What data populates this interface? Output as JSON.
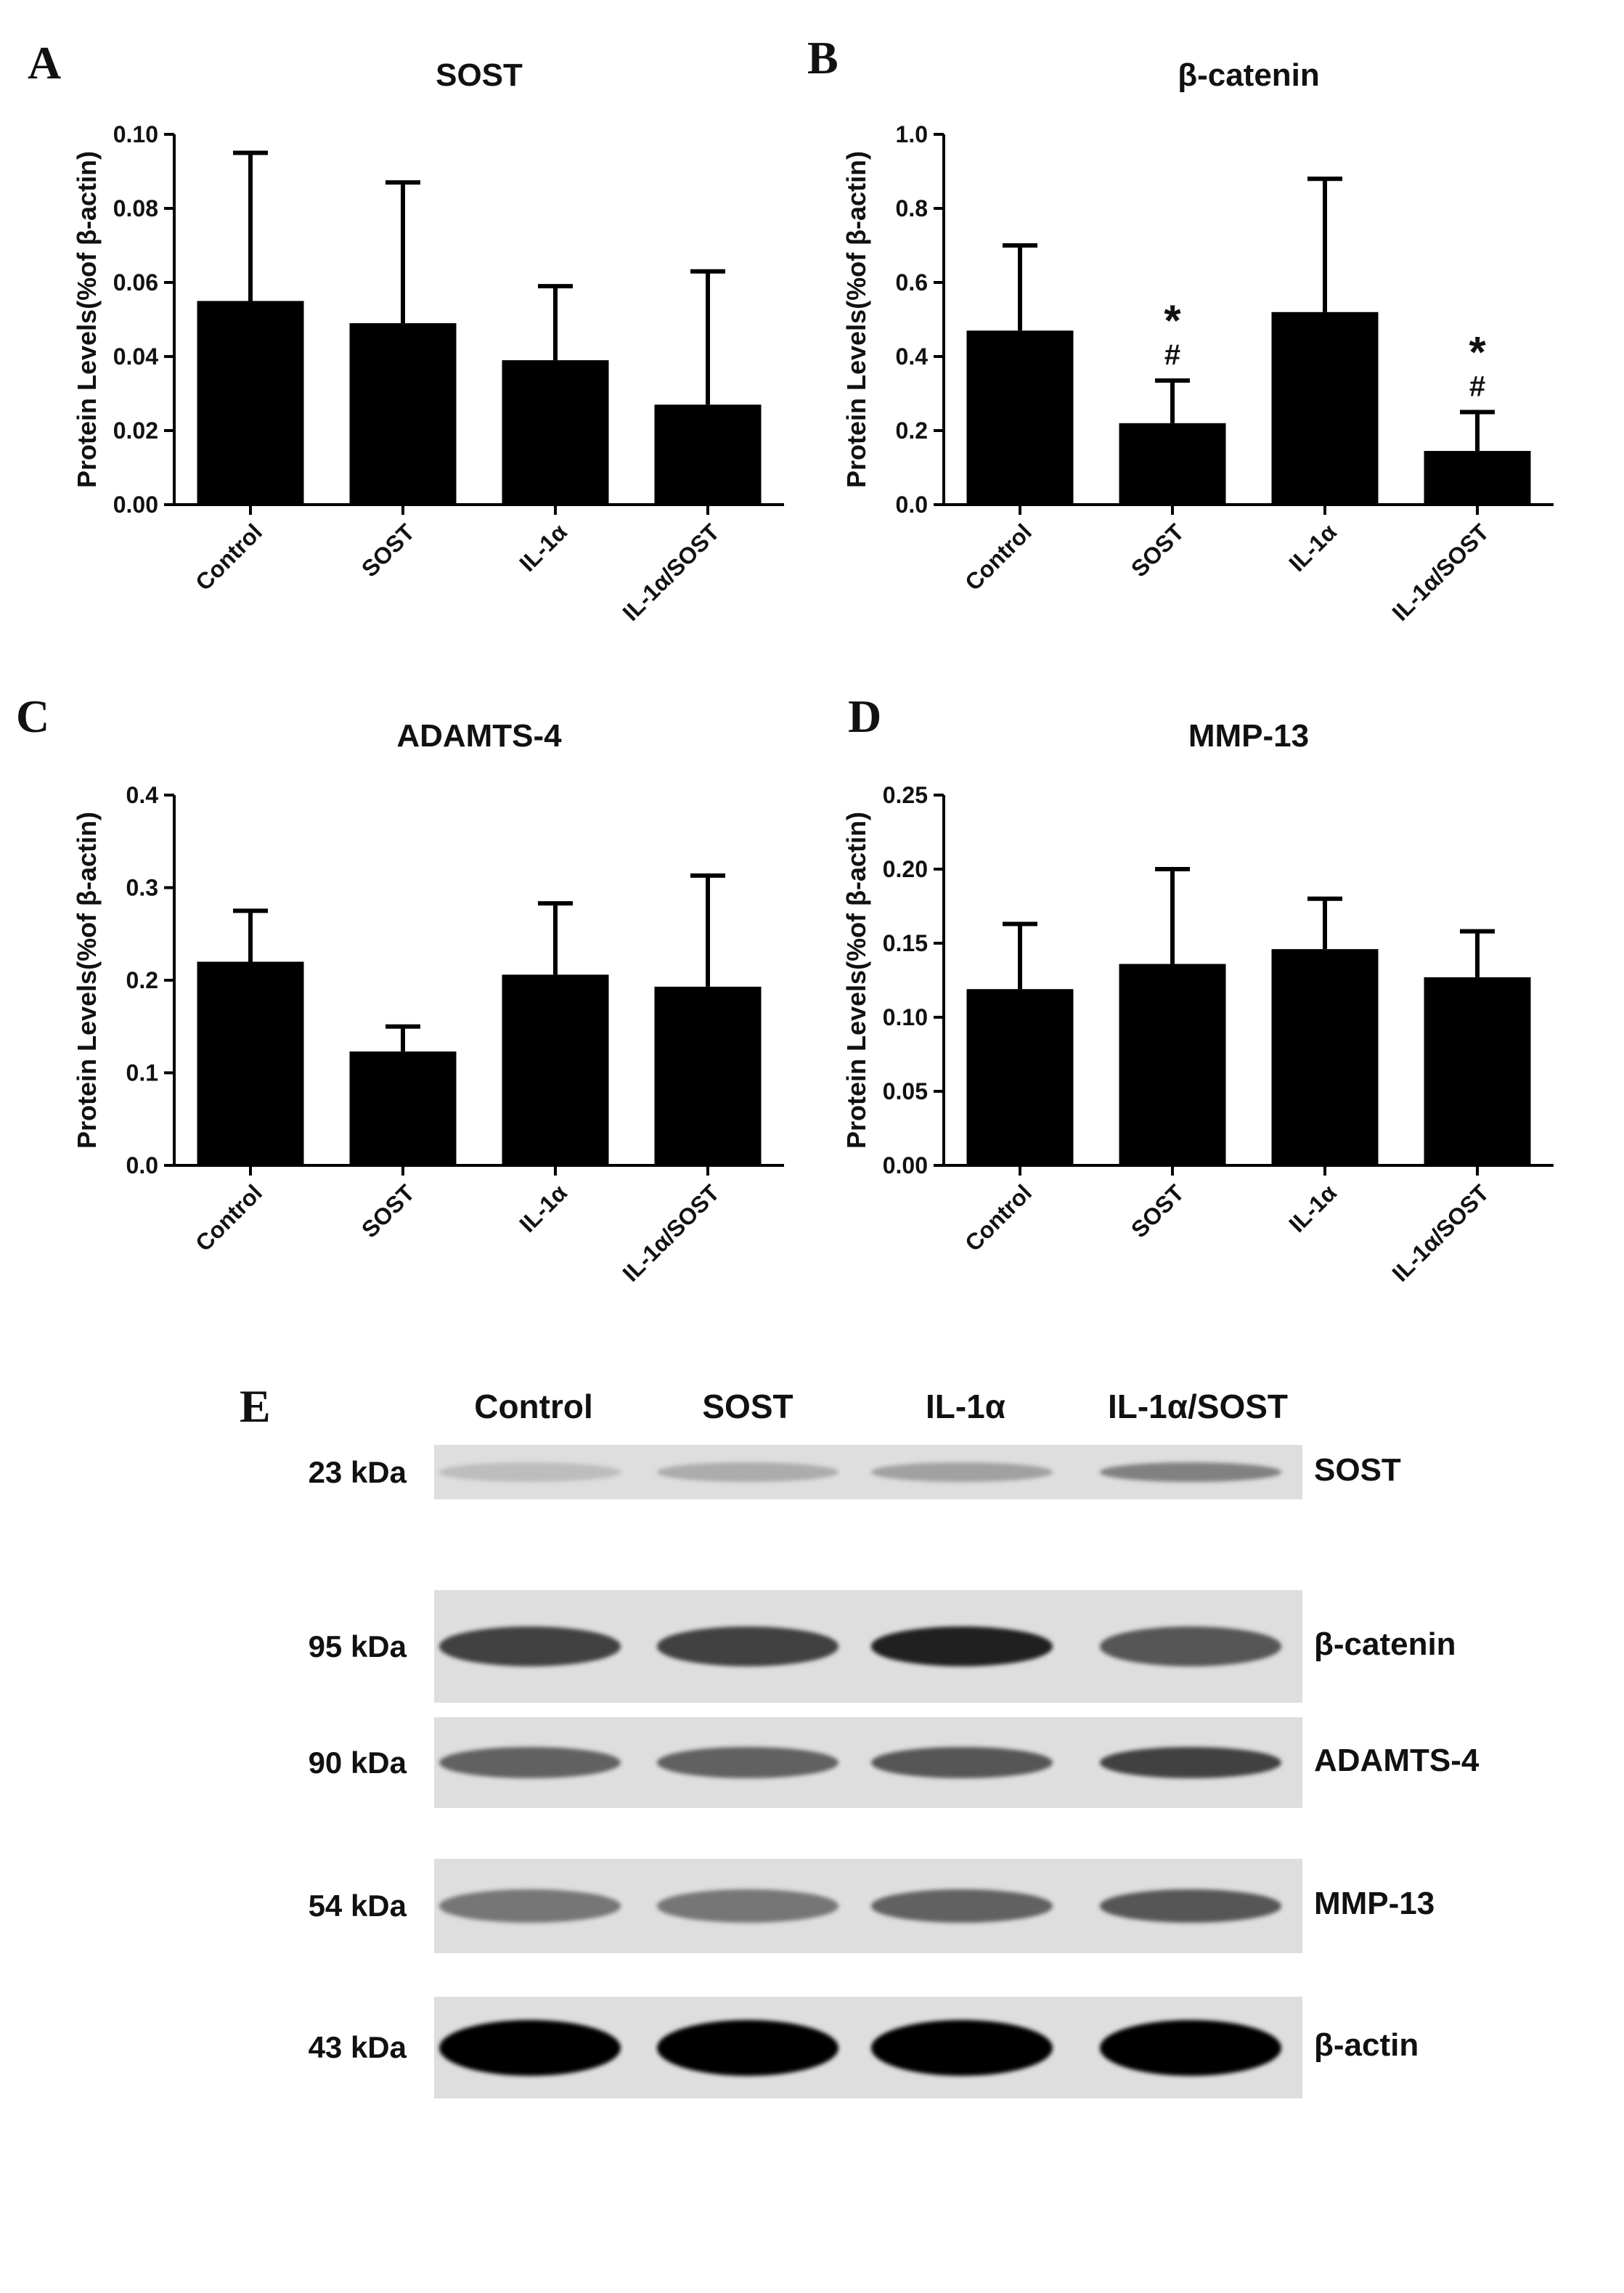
{
  "panels": {
    "A": "A",
    "B": "B",
    "C": "C",
    "D": "D",
    "E": "E"
  },
  "chart_data": [
    {
      "id": "A",
      "type": "bar",
      "title": "SOST",
      "ylabel": "Protein Levels(%of β-actin)",
      "categories": [
        "Control",
        "SOST",
        "IL-1α",
        "IL-1α/SOST"
      ],
      "values": [
        0.055,
        0.049,
        0.039,
        0.027
      ],
      "errors": [
        0.04,
        0.038,
        0.02,
        0.036
      ],
      "ylim": [
        0,
        0.1
      ],
      "yticks": [
        0.0,
        0.02,
        0.04,
        0.06,
        0.08,
        0.1
      ],
      "ytick_labels": [
        "0.00",
        "0.02",
        "0.04",
        "0.06",
        "0.08",
        "0.10"
      ],
      "annotations": [],
      "bar_color": "#000000"
    },
    {
      "id": "B",
      "type": "bar",
      "title": "β-catenin",
      "ylabel": "Protein Levels(%of β-actin)",
      "categories": [
        "Control",
        "SOST",
        "IL-1α",
        "IL-1α/SOST"
      ],
      "values": [
        0.47,
        0.22,
        0.52,
        0.145
      ],
      "errors": [
        0.23,
        0.115,
        0.36,
        0.105
      ],
      "ylim": [
        0,
        1.0
      ],
      "yticks": [
        0.0,
        0.2,
        0.4,
        0.6,
        0.8,
        1.0
      ],
      "ytick_labels": [
        "0.0",
        "0.2",
        "0.4",
        "0.6",
        "0.8",
        "1.0"
      ],
      "annotations": [
        {
          "category_index": 1,
          "star": "*",
          "hash": "#"
        },
        {
          "category_index": 3,
          "star": "*",
          "hash": "#"
        }
      ],
      "bar_color": "#000000"
    },
    {
      "id": "C",
      "type": "bar",
      "title": "ADAMTS-4",
      "ylabel": "Protein Levels(%of β-actin)",
      "categories": [
        "Control",
        "SOST",
        "IL-1α",
        "IL-1α/SOST"
      ],
      "values": [
        0.22,
        0.123,
        0.206,
        0.193
      ],
      "errors": [
        0.055,
        0.027,
        0.077,
        0.12
      ],
      "ylim": [
        0,
        0.4
      ],
      "yticks": [
        0.0,
        0.1,
        0.2,
        0.3,
        0.4
      ],
      "ytick_labels": [
        "0.0",
        "0.1",
        "0.2",
        "0.3",
        "0.4"
      ],
      "annotations": [],
      "bar_color": "#000000"
    },
    {
      "id": "D",
      "type": "bar",
      "title": "MMP-13",
      "ylabel": "Protein Levels(%of β-actin)",
      "categories": [
        "Control",
        "SOST",
        "IL-1α",
        "IL-1α/SOST"
      ],
      "values": [
        0.119,
        0.136,
        0.146,
        0.127
      ],
      "errors": [
        0.044,
        0.064,
        0.034,
        0.031
      ],
      "ylim": [
        0,
        0.25
      ],
      "yticks": [
        0.0,
        0.05,
        0.1,
        0.15,
        0.2,
        0.25
      ],
      "ytick_labels": [
        "0.00",
        "0.05",
        "0.10",
        "0.15",
        "0.20",
        "0.25"
      ],
      "annotations": [],
      "bar_color": "#000000"
    }
  ],
  "blot": {
    "lanes": [
      "Control",
      "SOST",
      "IL-1α",
      "IL-1α/SOST"
    ],
    "rows": [
      {
        "kda": "23 kDa",
        "protein": "SOST",
        "intensity": [
          0.12,
          0.2,
          0.25,
          0.4
        ]
      },
      {
        "kda": "95 kDa",
        "protein": "β-catenin",
        "intensity": [
          0.7,
          0.7,
          0.85,
          0.6
        ]
      },
      {
        "kda": "90 kDa",
        "protein": "ADAMTS-4",
        "intensity": [
          0.55,
          0.55,
          0.6,
          0.7
        ]
      },
      {
        "kda": "54 kDa",
        "protein": "MMP-13",
        "intensity": [
          0.45,
          0.45,
          0.55,
          0.6
        ]
      },
      {
        "kda": "43 kDa",
        "protein": "β-actin",
        "intensity": [
          1.0,
          1.0,
          1.0,
          1.0
        ]
      }
    ]
  }
}
